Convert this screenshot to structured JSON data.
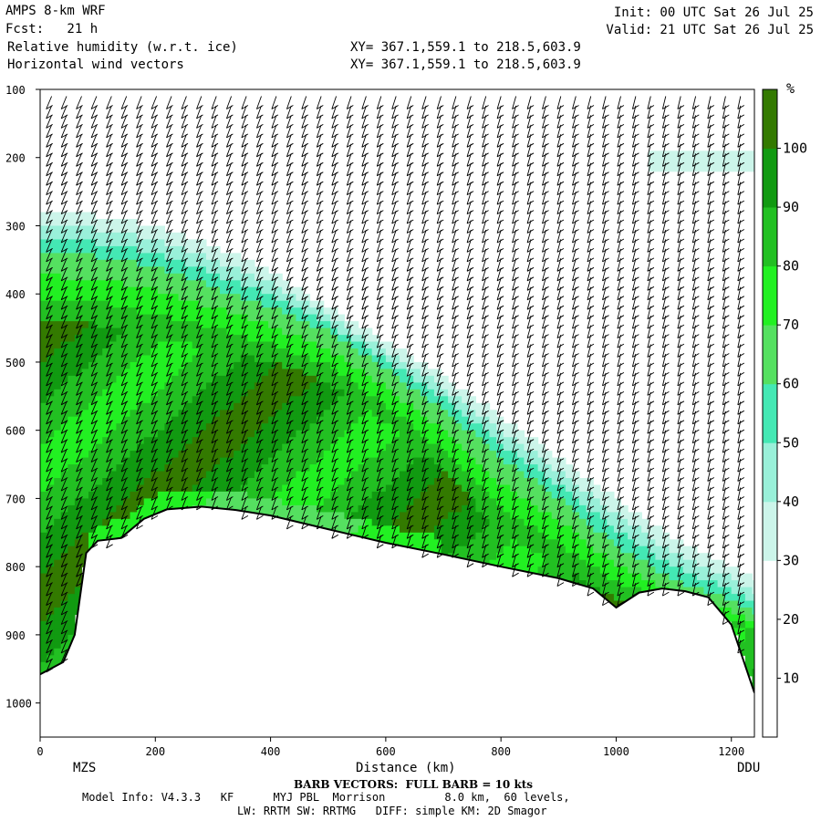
{
  "header": {
    "model": "AMPS 8-km WRF",
    "fcst": "Fcst:   21 h",
    "field1": "Relative humidity (w.r.t. ice)",
    "field2": "Horizontal wind vectors",
    "xy1": "XY= 367.1,559.1 to 218.5,603.9",
    "xy2": "XY= 367.1,559.1 to 218.5,603.9",
    "init": "Init: 00 UTC Sat 26 Jul 25",
    "valid": "Valid: 21 UTC Sat 26 Jul 25"
  },
  "footer": {
    "left_station": "MZS",
    "right_station": "DDU",
    "barb_note": "BARB VECTORS:  FULL BARB = 10 kts",
    "model_info": "Model Info: V4.3.3   KF      MYJ PBL  Morrison         8.0 km,  60 levels,",
    "model_info2": "LW: RRTM SW: RRTMG   DIFF: simple KM: 2D Smagor"
  },
  "chart_data": {
    "type": "heatmap",
    "title": "Relative humidity (w.r.t. ice)",
    "xlabel": "Distance (km)",
    "ylabel": "",
    "xlim": [
      0,
      1240
    ],
    "ylim": [
      1050,
      100
    ],
    "x_ticks": [
      0,
      200,
      400,
      600,
      800,
      1000,
      1200
    ],
    "y_ticks": [
      100,
      200,
      300,
      400,
      500,
      600,
      700,
      800,
      900,
      1000
    ],
    "colorbar": {
      "unit": "%",
      "levels": [
        0,
        10,
        20,
        30,
        40,
        50,
        60,
        70,
        80,
        90,
        100,
        110
      ],
      "labels": [
        10,
        20,
        30,
        40,
        50,
        60,
        70,
        80,
        90,
        100
      ],
      "colors": [
        "#ffffff",
        "#ffffff",
        "#ffffff",
        "#ccf5ea",
        "#99f0d9",
        "#44e8b4",
        "#55e060",
        "#22f022",
        "#22c022",
        "#119a11",
        "#337a00"
      ]
    },
    "terrain": {
      "distance_km": [
        0,
        40,
        60,
        80,
        100,
        140,
        180,
        220,
        280,
        340,
        400,
        500,
        600,
        700,
        800,
        900,
        960,
        1000,
        1040,
        1080,
        1120,
        1160,
        1200,
        1240
      ],
      "pressure_hpa": [
        958,
        940,
        900,
        780,
        762,
        758,
        730,
        716,
        712,
        717,
        725,
        745,
        765,
        782,
        800,
        817,
        832,
        860,
        838,
        832,
        836,
        845,
        885,
        985
      ]
    },
    "rh_layer_pressure_hpa": {
      "distance_km": [
        0,
        100,
        200,
        300,
        400,
        500,
        600,
        700,
        800,
        900,
        1000,
        1100,
        1200,
        1240
      ],
      "top_30": [
        280,
        285,
        300,
        330,
        365,
        420,
        470,
        520,
        580,
        640,
        700,
        760,
        800,
        820
      ],
      "top_60": [
        340,
        345,
        360,
        390,
        420,
        455,
        510,
        570,
        640,
        700,
        770,
        820,
        850,
        870
      ],
      "top_90": [
        440,
        445,
        465,
        480,
        500,
        530,
        590,
        660,
        750,
        800,
        850,
        870,
        890,
        900
      ]
    },
    "upper_rh_patch": {
      "distance_km": [
        1060,
        1240
      ],
      "pressure_hpa": [
        190,
        220
      ]
    }
  }
}
